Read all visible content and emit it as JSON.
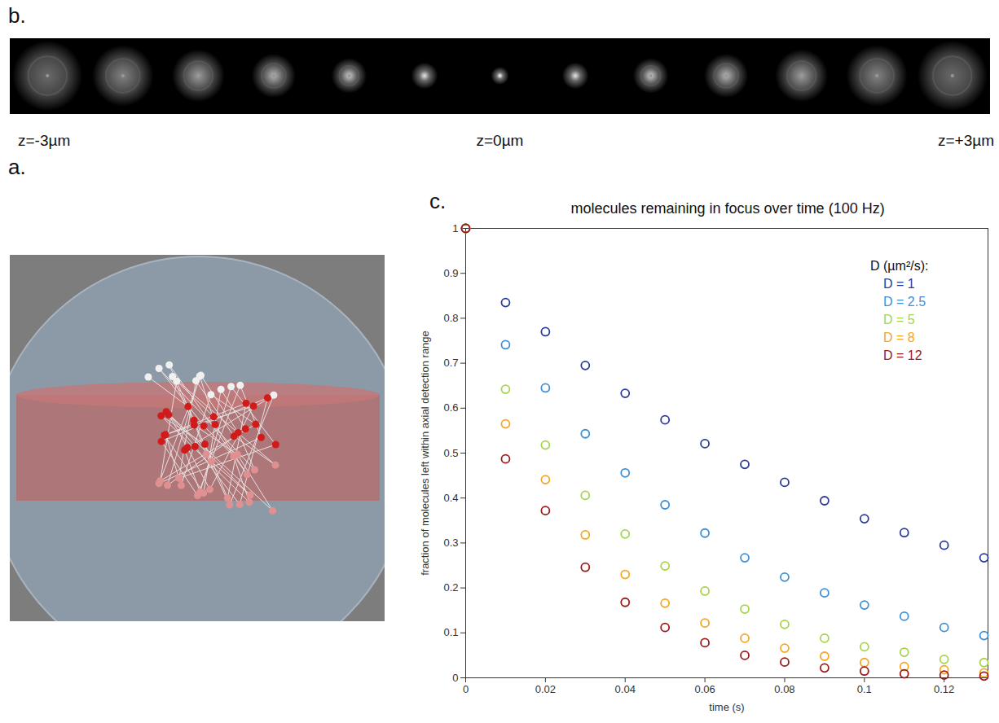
{
  "figure": {
    "panel_b": {
      "label": "b.",
      "z_labels": [
        "z=-3µm",
        "z=0µm",
        "z=+3µm"
      ]
    },
    "panel_a": {
      "label": "a."
    }
  },
  "chart_data": {
    "type": "scatter",
    "panel_label": "c.",
    "title": "molecules remaining in focus over time (100 Hz)",
    "x_label": "time (s)",
    "y_label": "fraction of molecules left within axial detection range",
    "x": [
      0,
      0.01,
      0.02,
      0.03,
      0.04,
      0.05,
      0.06,
      0.07,
      0.08,
      0.09,
      0.1,
      0.11,
      0.12,
      0.13
    ],
    "series": [
      {
        "name": "D = 1",
        "color": "#2b3a9a",
        "values": [
          1,
          0.835,
          0.77,
          0.695,
          0.633,
          0.574,
          0.521,
          0.475,
          0.435,
          0.394,
          0.354,
          0.323,
          0.295,
          0.267
        ]
      },
      {
        "name": "D = 2.5",
        "color": "#3f8fd6",
        "values": [
          1,
          0.741,
          0.645,
          0.543,
          0.456,
          0.385,
          0.322,
          0.267,
          0.224,
          0.189,
          0.162,
          0.137,
          0.112,
          0.094
        ]
      },
      {
        "name": "D = 5",
        "color": "#a6d44a",
        "values": [
          1,
          0.642,
          0.518,
          0.406,
          0.32,
          0.249,
          0.193,
          0.153,
          0.119,
          0.088,
          0.069,
          0.057,
          0.041,
          0.034
        ]
      },
      {
        "name": "D = 8",
        "color": "#f5a623",
        "values": [
          1,
          0.565,
          0.441,
          0.318,
          0.23,
          0.166,
          0.122,
          0.088,
          0.066,
          0.048,
          0.034,
          0.025,
          0.018,
          0.011
        ]
      },
      {
        "name": "D = 12",
        "color": "#9b1a1a",
        "values": [
          1,
          0.487,
          0.372,
          0.246,
          0.168,
          0.112,
          0.078,
          0.05,
          0.035,
          0.022,
          0.015,
          0.009,
          0.006,
          0.004
        ]
      }
    ],
    "xlim": [
      0,
      0.131
    ],
    "ylim": [
      0,
      1
    ],
    "xticks": [
      0,
      0.02,
      0.04,
      0.06,
      0.08,
      0.1,
      0.12
    ],
    "yticks": [
      0,
      0.1,
      0.2,
      0.3,
      0.4,
      0.5,
      0.6,
      0.7,
      0.8,
      0.9,
      1
    ],
    "legend": "top-right",
    "legend_title": "D (µm²/s):",
    "marker": "circle"
  }
}
